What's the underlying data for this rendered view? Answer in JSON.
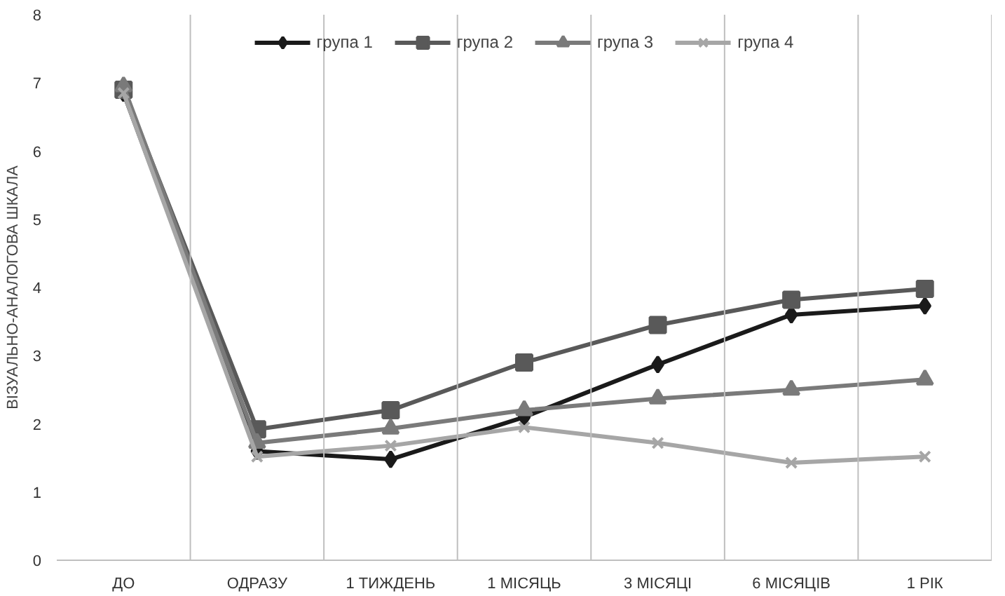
{
  "chart_data": {
    "type": "line",
    "ylabel": "ВІЗУАЛЬНО-АНАЛОГОВА ШКАЛА",
    "categories": [
      "ДО",
      "ОДРАЗУ",
      "1 ТИЖДЕНЬ",
      "1 МІСЯЦЬ",
      "3 МІСЯЦІ",
      "6 МІСЯЦІВ",
      "1 РІК"
    ],
    "series": [
      {
        "name": "група 1",
        "color": "#1a1a1a",
        "marker": "diamond",
        "values": [
          6.85,
          1.6,
          1.48,
          2.1,
          2.87,
          3.6,
          3.73
        ]
      },
      {
        "name": "група 2",
        "color": "#595959",
        "marker": "square",
        "values": [
          6.9,
          1.92,
          2.2,
          2.9,
          3.45,
          3.82,
          3.98
        ]
      },
      {
        "name": "група 3",
        "color": "#7a7a7a",
        "marker": "triangle",
        "values": [
          6.95,
          1.72,
          1.93,
          2.2,
          2.37,
          2.5,
          2.65
        ]
      },
      {
        "name": "група 4",
        "color": "#a6a6a6",
        "marker": "cross",
        "values": [
          6.85,
          1.52,
          1.68,
          1.95,
          1.72,
          1.43,
          1.52
        ]
      }
    ],
    "ylim": [
      0,
      8
    ],
    "yticks": [
      0,
      1,
      2,
      3,
      4,
      5,
      6,
      7,
      8
    ],
    "grid": "x",
    "legend": "top"
  }
}
